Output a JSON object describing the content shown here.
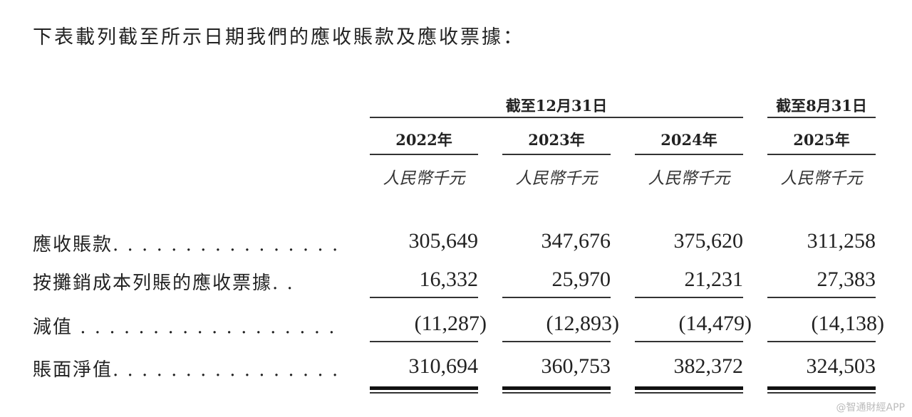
{
  "title": "下表載列截至所示日期我們的應收賬款及應收票據：",
  "group_headers": [
    "截至12月31日",
    "截至8月31日"
  ],
  "years": [
    "2022年",
    "2023年",
    "2024年",
    "2025年"
  ],
  "currency": "人民幣千元",
  "rows": [
    {
      "label": "應收賬款. . . . . . . . . . . . . . . .",
      "values": [
        "305,649",
        "347,676",
        "375,620",
        "311,258"
      ]
    },
    {
      "label": "按攤銷成本列賬的應收票據. .",
      "values": [
        "16,332",
        "25,970",
        "21,231",
        "27,383"
      ]
    },
    {
      "label": "減值 . . . . . . . . . . . . . . . . . .",
      "values": [
        "(11,287)",
        "(12,893)",
        "(14,479)",
        "(14,138)"
      ]
    },
    {
      "label": "賬面淨值. . . . . . . . . . . . . . . .",
      "values": [
        "310,694",
        "360,753",
        "382,372",
        "324,503"
      ]
    }
  ],
  "watermark": "@智通財經APP"
}
